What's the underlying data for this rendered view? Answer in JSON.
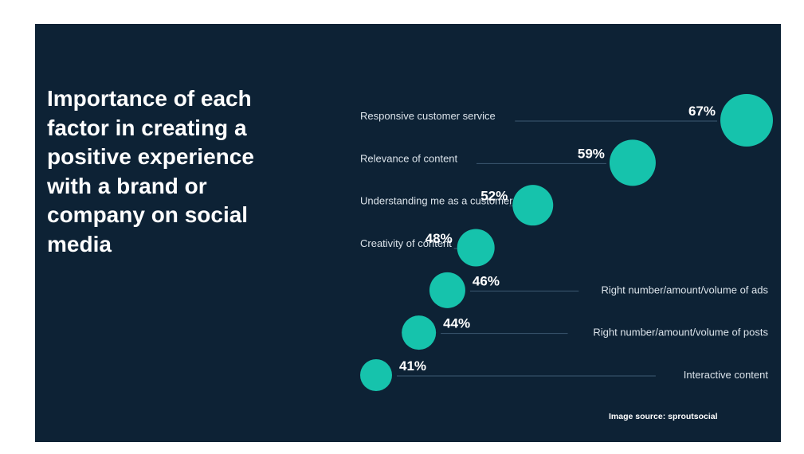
{
  "slide": {
    "background": "#0d2235",
    "source_note": "Image source: sproutsocial"
  },
  "chart_data": {
    "type": "scatter",
    "title": "Importance of each factor in creating a positive experience with a brand or company on social media",
    "xlabel": "",
    "ylabel": "",
    "unit": "%",
    "marker_color": "#16c3ac",
    "categories": [
      "Responsive customer service",
      "Relevance of content",
      "Understanding me as a customer",
      "Creativity of content",
      "Right number/amount/volume of ads",
      "Right number/amount/volume of posts",
      "Interactive content"
    ],
    "values": [
      67,
      59,
      52,
      48,
      46,
      44,
      41
    ],
    "value_labels": [
      "67%",
      "59%",
      "52%",
      "48%",
      "46%",
      "44%",
      "41%"
    ]
  }
}
